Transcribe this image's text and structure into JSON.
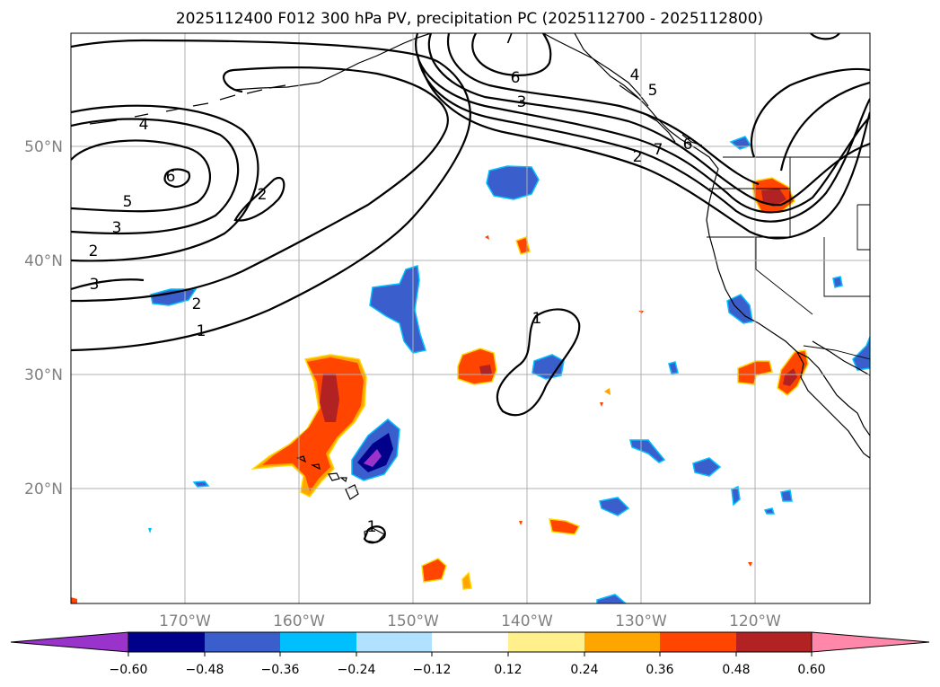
{
  "title": "2025112400 F012 300 hPa PV, precipitation PC (2025112700 - 2025112800)",
  "map": {
    "lon_range": [
      -180,
      -110
    ],
    "lat_range": [
      10,
      60
    ],
    "lat_labels": [
      "50°N",
      "40°N",
      "30°N",
      "20°N"
    ],
    "lon_labels": [
      "170°W",
      "160°W",
      "150°W",
      "140°W",
      "130°W",
      "120°W"
    ]
  },
  "pv_contour_labels": [
    "4",
    "6",
    "5",
    "3",
    "2",
    "3",
    "2",
    "1",
    "2",
    "7",
    "6",
    "3",
    "4",
    "5",
    "7",
    "6",
    "2",
    "1",
    "1"
  ],
  "colorbar": {
    "tick_labels": [
      "−0.60",
      "−0.48",
      "−0.36",
      "−0.24",
      "−0.12",
      "0.12",
      "0.24",
      "0.36",
      "0.48",
      "0.60"
    ],
    "colors": [
      "#9933cc",
      "#00008b",
      "#3a5fcd",
      "#00bfff",
      "#b0e2ff",
      "#ffffff",
      "#fff08c",
      "#ffa500",
      "#ff4500",
      "#b22222",
      "#ff88aa"
    ]
  },
  "palette": {
    "purple": "#9933cc",
    "navy": "#00008b",
    "blue": "#3a5fcd",
    "cyan": "#00bfff",
    "yellow": "#fff08c",
    "orange": "#ffa500",
    "redorange": "#ff4500",
    "firebrick": "#b22222"
  }
}
